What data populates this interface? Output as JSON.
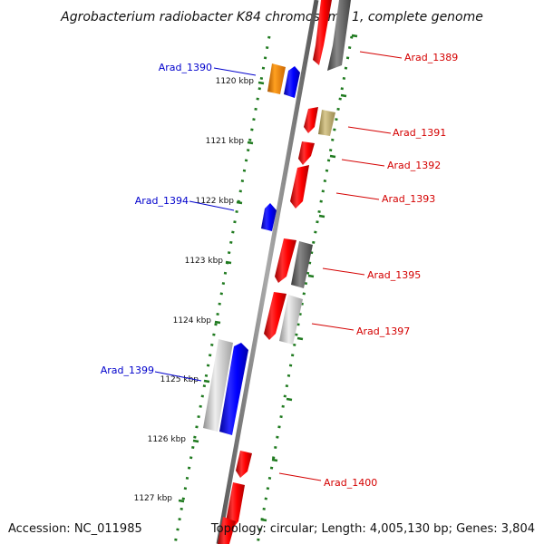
{
  "title": "Agrobacterium radiobacter K84 chromosome 1, complete genome",
  "footer": {
    "accession": "Accession: NC_011985",
    "summary": "Topology: circular; Length: 4,005,130 bp; Genes: 3,804"
  },
  "colors": {
    "backbone": "#777777",
    "ruler": "#1f7a1f",
    "label_plus": "#d40000",
    "label_minus": "#0000cc",
    "red": "#ff0000",
    "blue": "#0000ff",
    "orange": "#ee8800",
    "khaki": "#b8a860",
    "dark_grey": "#666666",
    "light_grey": "#bbbbbb"
  },
  "ruler_labels": [
    "1120 kbp",
    "1121 kbp",
    "1122 kbp",
    "1123 kbp",
    "1124 kbp",
    "1125 kbp",
    "1126 kbp",
    "1127 kbp"
  ],
  "gene_labels": [
    "Arad_1389",
    "Arad_1390",
    "Arad_1391",
    "Arad_1392",
    "Arad_1393",
    "Arad_1394",
    "Arad_1395",
    "Arad_1397",
    "Arad_1399",
    "Arad_1400"
  ]
}
